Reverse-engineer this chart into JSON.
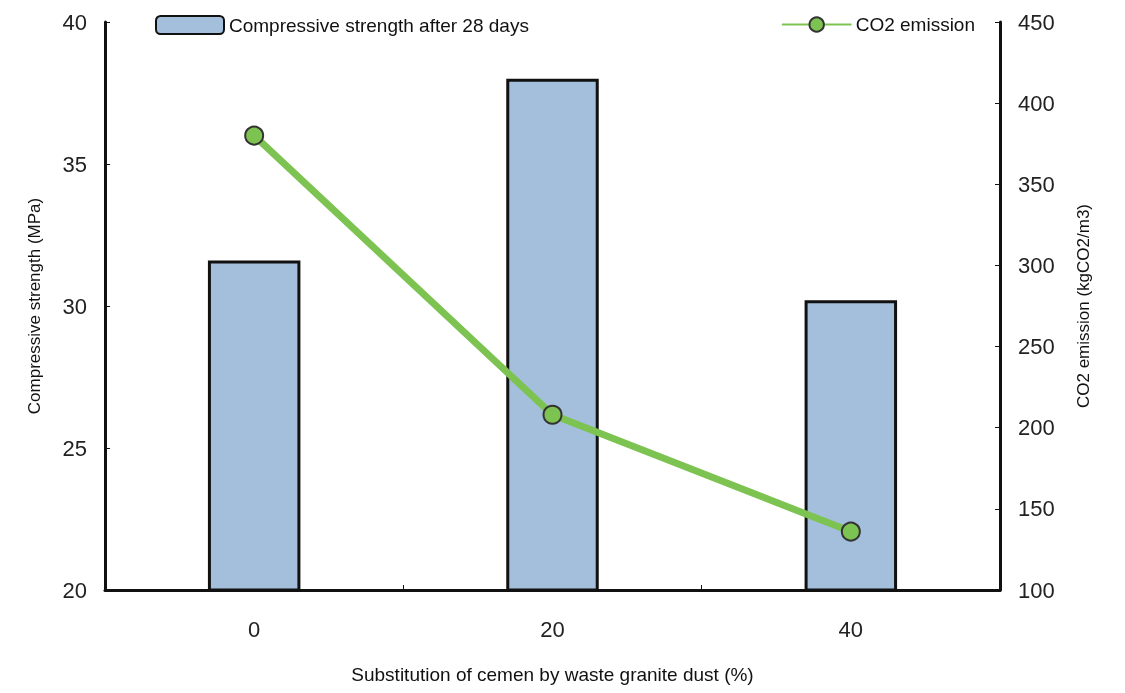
{
  "chart_data": {
    "type": "bar",
    "xlabel": "Substitution of cemen by waste granite dust (%)",
    "ylabel": "Compressive strength (MPa)",
    "y2label": "CO2 emission (kgCO2/m3)",
    "categories": [
      "0",
      "20",
      "40"
    ],
    "series": [
      {
        "name": "Compressive strength after 28 days",
        "color": "#a3bfdc",
        "values": [
          31.6,
          38.0,
          30.2
        ]
      },
      {
        "name": "CO2 emission",
        "type": "line",
        "axis": "y2",
        "color": "#7dc352",
        "values": [
          380,
          208,
          136
        ]
      }
    ],
    "ylim": [
      20,
      40
    ],
    "yticks": [
      20,
      25,
      30,
      35,
      40
    ],
    "y2lim": [
      100,
      450
    ],
    "y2ticks": [
      100,
      150,
      200,
      250,
      300,
      350,
      400,
      450
    ],
    "grid": false,
    "legend": "top",
    "marker": "circle",
    "line_style": "solid"
  }
}
